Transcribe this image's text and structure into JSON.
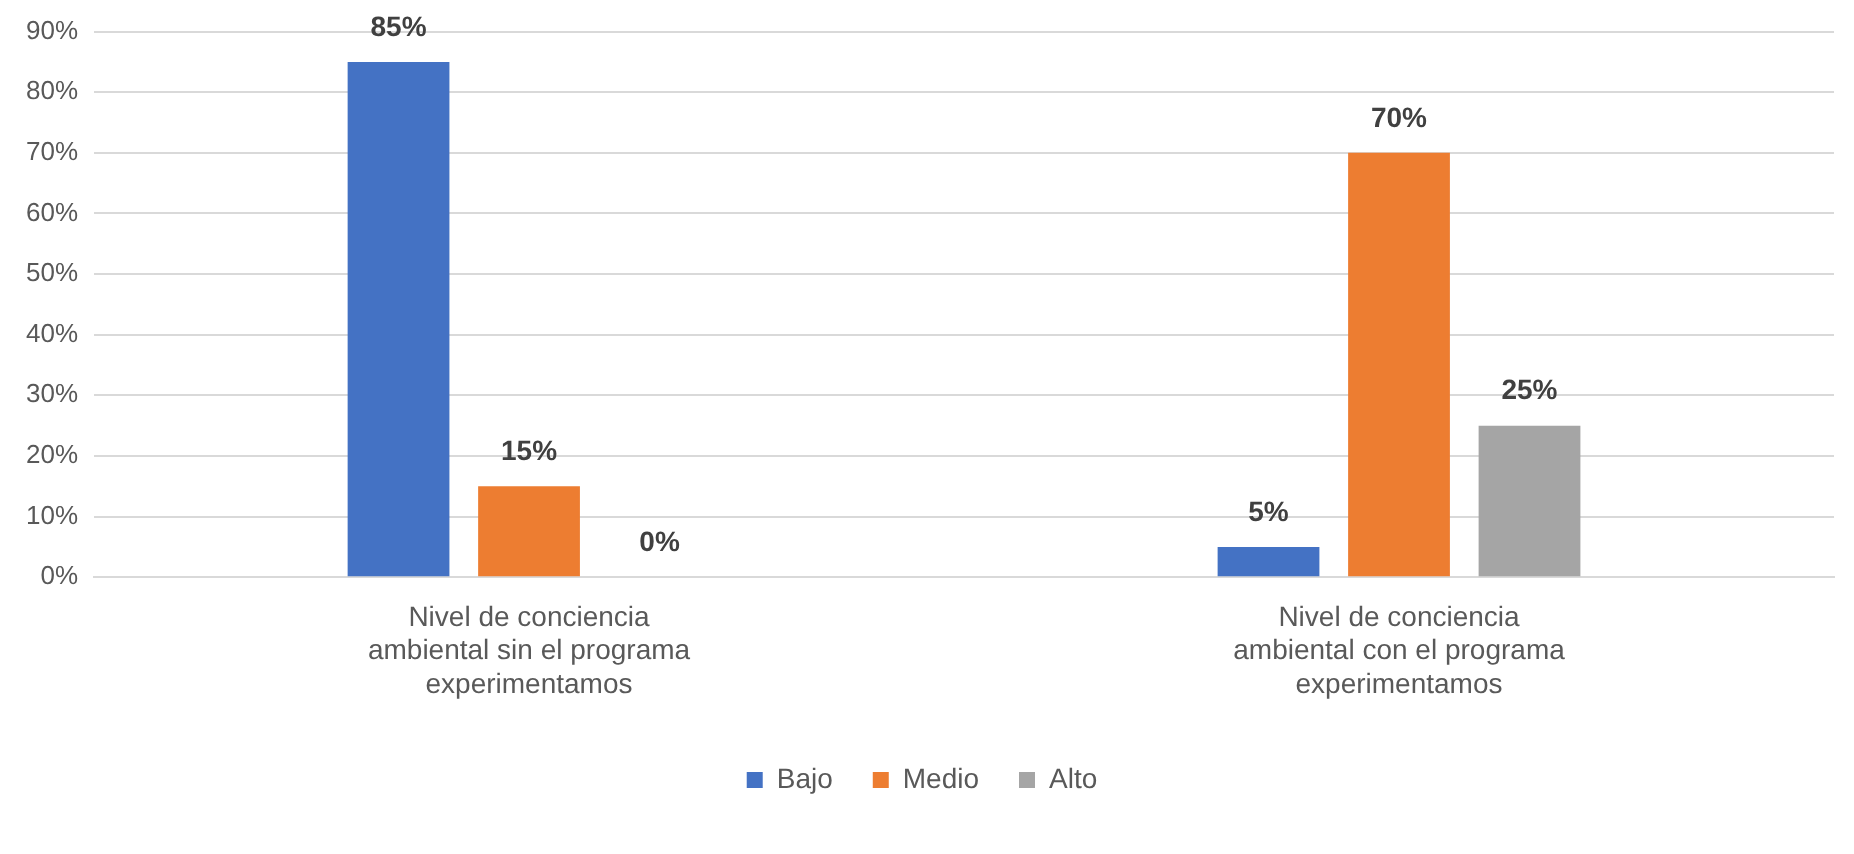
{
  "chart_data": {
    "type": "bar",
    "categories": [
      "Nivel de conciencia ambiental sin el programa experimentamos",
      "Nivel de conciencia ambiental con el programa experimentamos"
    ],
    "series": [
      {
        "name": "Bajo",
        "color": "#4472c4",
        "values": [
          85,
          5
        ]
      },
      {
        "name": "Medio",
        "color": "#ed7d31",
        "values": [
          15,
          70
        ]
      },
      {
        "name": "Alto",
        "color": "#a5a5a5",
        "values": [
          0,
          25
        ]
      }
    ],
    "ylim": [
      0,
      90
    ],
    "yticks": [
      {
        "value": 0,
        "label": "0%"
      },
      {
        "value": 10,
        "label": "10%"
      },
      {
        "value": 20,
        "label": "20%"
      },
      {
        "value": 30,
        "label": "30%"
      },
      {
        "value": 40,
        "label": "40%"
      },
      {
        "value": 50,
        "label": "50%"
      },
      {
        "value": 60,
        "label": "60%"
      },
      {
        "value": 70,
        "label": "70%"
      },
      {
        "value": 80,
        "label": "80%"
      },
      {
        "value": 90,
        "label": "90%"
      }
    ],
    "value_labels": [
      "85%",
      "5%",
      "15%",
      "70%",
      "0%",
      "25%"
    ],
    "grid": "y",
    "legend": "bottom"
  }
}
